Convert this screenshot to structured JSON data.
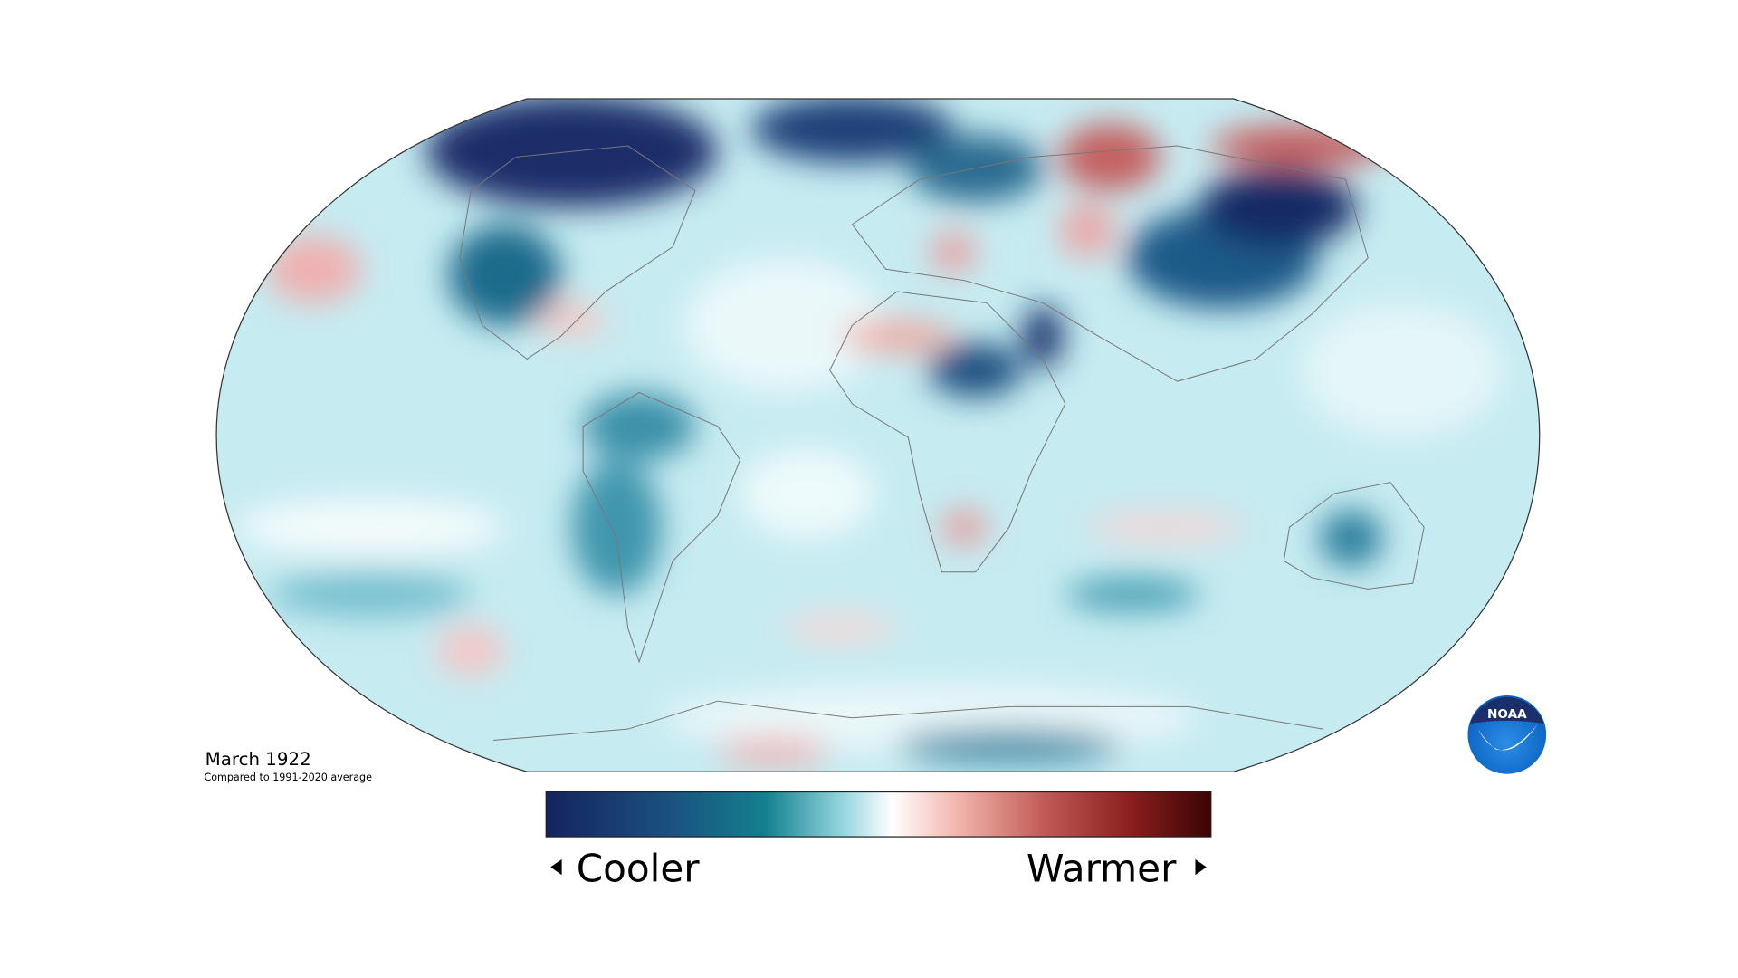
{
  "title": "March 1922",
  "subtitle": "Compared to 1991-2020 average",
  "legend": {
    "low_label": "Cooler",
    "high_label": "Warmer"
  },
  "logo": {
    "text": "NOAA"
  }
}
